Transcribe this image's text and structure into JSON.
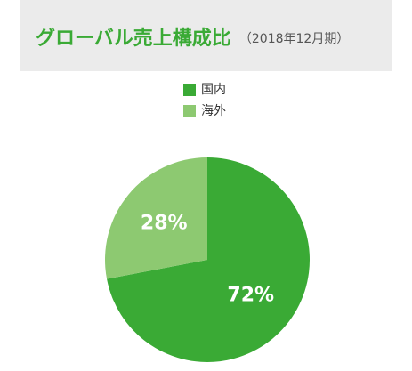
{
  "chart_data": {
    "type": "pie",
    "title": "グローバル売上構成比",
    "subtitle": "（2018年12月期）",
    "categories": [
      "国内",
      "海外"
    ],
    "values": [
      72,
      28
    ],
    "value_labels": [
      "72%",
      "28%"
    ],
    "colors": [
      "#3aaa35",
      "#8dc971"
    ],
    "legend": "top"
  }
}
